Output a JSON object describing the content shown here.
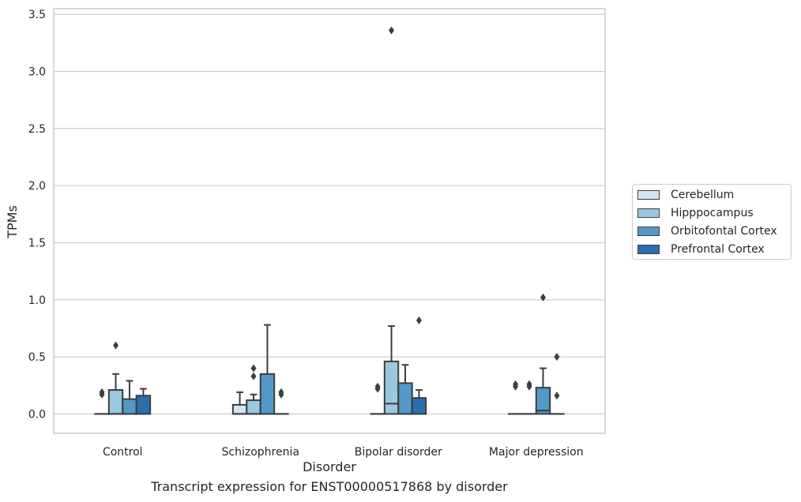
{
  "chart_data": {
    "type": "boxplot",
    "caption": "Transcript expression for ENST00000517868 by disorder",
    "xlabel": "Disorder",
    "ylabel": "TPMs",
    "ylim": [
      -0.17,
      3.55
    ],
    "yticks": [
      0.0,
      0.5,
      1.0,
      1.5,
      2.0,
      2.5,
      3.0,
      3.5
    ],
    "ytick_labels": [
      "0.0",
      "0.5",
      "1.0",
      "1.5",
      "2.0",
      "2.5",
      "3.0",
      "3.5"
    ],
    "categories": [
      "Control",
      "Schizophrenia",
      "Bipolar disorder",
      "Major depression"
    ],
    "grid": "horizontal",
    "legend_position": "right",
    "series": [
      {
        "name": "Cerebellum",
        "color": "#d3e4f3",
        "boxes": [
          {
            "q1": 0.0,
            "median": 0.0,
            "q3": 0.0,
            "whisker_low": 0.0,
            "whisker_high": 0.0,
            "outliers": [
              0.17,
              0.19
            ]
          },
          {
            "q1": 0.0,
            "median": 0.0,
            "q3": 0.08,
            "whisker_low": 0.0,
            "whisker_high": 0.19,
            "outliers": []
          },
          {
            "q1": 0.0,
            "median": 0.0,
            "q3": 0.0,
            "whisker_low": 0.0,
            "whisker_high": 0.0,
            "outliers": [
              0.22,
              0.24
            ]
          },
          {
            "q1": 0.0,
            "median": 0.0,
            "q3": 0.0,
            "whisker_low": 0.0,
            "whisker_high": 0.0,
            "outliers": [
              0.24,
              0.26
            ]
          }
        ]
      },
      {
        "name": "Hipppocampus",
        "color": "#9ac8e0",
        "boxes": [
          {
            "q1": 0.0,
            "median": 0.0,
            "q3": 0.21,
            "whisker_low": 0.0,
            "whisker_high": 0.35,
            "outliers": [
              0.6
            ]
          },
          {
            "q1": 0.0,
            "median": 0.0,
            "q3": 0.12,
            "whisker_low": 0.0,
            "whisker_high": 0.17,
            "outliers": [
              0.33,
              0.4
            ]
          },
          {
            "q1": 0.0,
            "median": 0.09,
            "q3": 0.46,
            "whisker_low": 0.0,
            "whisker_high": 0.77,
            "outliers": [
              3.36
            ]
          },
          {
            "q1": 0.0,
            "median": 0.0,
            "q3": 0.0,
            "whisker_low": 0.0,
            "whisker_high": 0.0,
            "outliers": [
              0.24,
              0.26
            ]
          }
        ]
      },
      {
        "name": "Orbitofontal Cortex",
        "color": "#5299c8",
        "boxes": [
          {
            "q1": 0.0,
            "median": 0.0,
            "q3": 0.13,
            "whisker_low": 0.0,
            "whisker_high": 0.29,
            "outliers": []
          },
          {
            "q1": 0.0,
            "median": 0.0,
            "q3": 0.35,
            "whisker_low": 0.0,
            "whisker_high": 0.78,
            "outliers": []
          },
          {
            "q1": 0.0,
            "median": 0.0,
            "q3": 0.27,
            "whisker_low": 0.0,
            "whisker_high": 0.43,
            "outliers": []
          },
          {
            "q1": 0.0,
            "median": 0.03,
            "q3": 0.23,
            "whisker_low": 0.0,
            "whisker_high": 0.4,
            "outliers": [
              1.02
            ]
          }
        ]
      },
      {
        "name": "Prefrontal Cortex",
        "color": "#2a6eb2",
        "boxes": [
          {
            "q1": 0.0,
            "median": 0.0,
            "q3": 0.16,
            "whisker_low": 0.0,
            "whisker_high": 0.22,
            "outliers": []
          },
          {
            "q1": 0.0,
            "median": 0.0,
            "q3": 0.0,
            "whisker_low": 0.0,
            "whisker_high": 0.0,
            "outliers": [
              0.17,
              0.19
            ]
          },
          {
            "q1": 0.0,
            "median": 0.0,
            "q3": 0.14,
            "whisker_low": 0.0,
            "whisker_high": 0.21,
            "outliers": [
              0.82
            ]
          },
          {
            "q1": 0.0,
            "median": 0.0,
            "q3": 0.0,
            "whisker_low": 0.0,
            "whisker_high": 0.0,
            "outliers": [
              0.16,
              0.5
            ]
          }
        ]
      }
    ]
  }
}
